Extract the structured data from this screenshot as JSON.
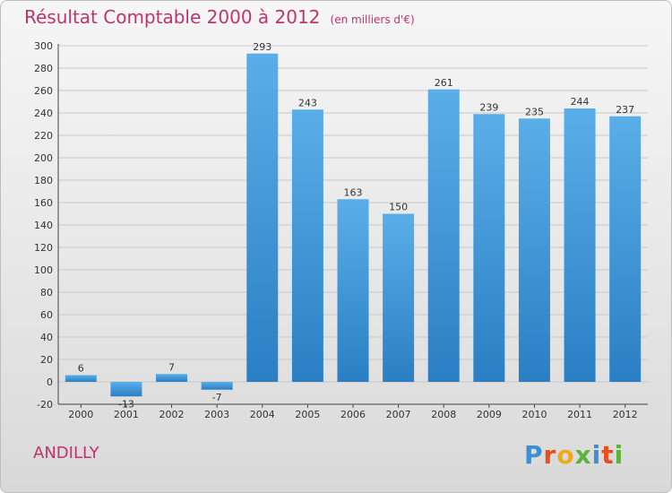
{
  "header": {
    "title": "Résultat Comptable 2000 à 2012",
    "unit": "(en milliers d'€)"
  },
  "commune": "ANDILLY",
  "logo": {
    "letters": [
      "P",
      "r",
      "o",
      "x",
      "i",
      "t",
      "i"
    ],
    "colors": [
      "#3b8fd6",
      "#e84e1b",
      "#f2a81d",
      "#5db33a",
      "#3b8fd6",
      "#e84e1b",
      "#5db33a"
    ]
  },
  "colors": {
    "bar_light": "#5aaee8",
    "bar_dark": "#2a7fc4",
    "title": "#c1336c"
  },
  "chart_data": {
    "type": "bar",
    "title": "Résultat Comptable 2000 à 2012",
    "subtitle": "(en milliers d'€)",
    "xlabel": "",
    "ylabel": "",
    "categories": [
      "2000",
      "2001",
      "2002",
      "2003",
      "2004",
      "2005",
      "2006",
      "2007",
      "2008",
      "2009",
      "2010",
      "2011",
      "2012"
    ],
    "values": [
      6,
      -13,
      7,
      -7,
      293,
      243,
      163,
      150,
      261,
      239,
      235,
      244,
      237
    ],
    "ylim": [
      -20,
      300
    ],
    "yticks": [
      -20,
      0,
      20,
      40,
      60,
      80,
      100,
      120,
      140,
      160,
      180,
      200,
      220,
      240,
      260,
      280,
      300
    ],
    "grid": true
  }
}
